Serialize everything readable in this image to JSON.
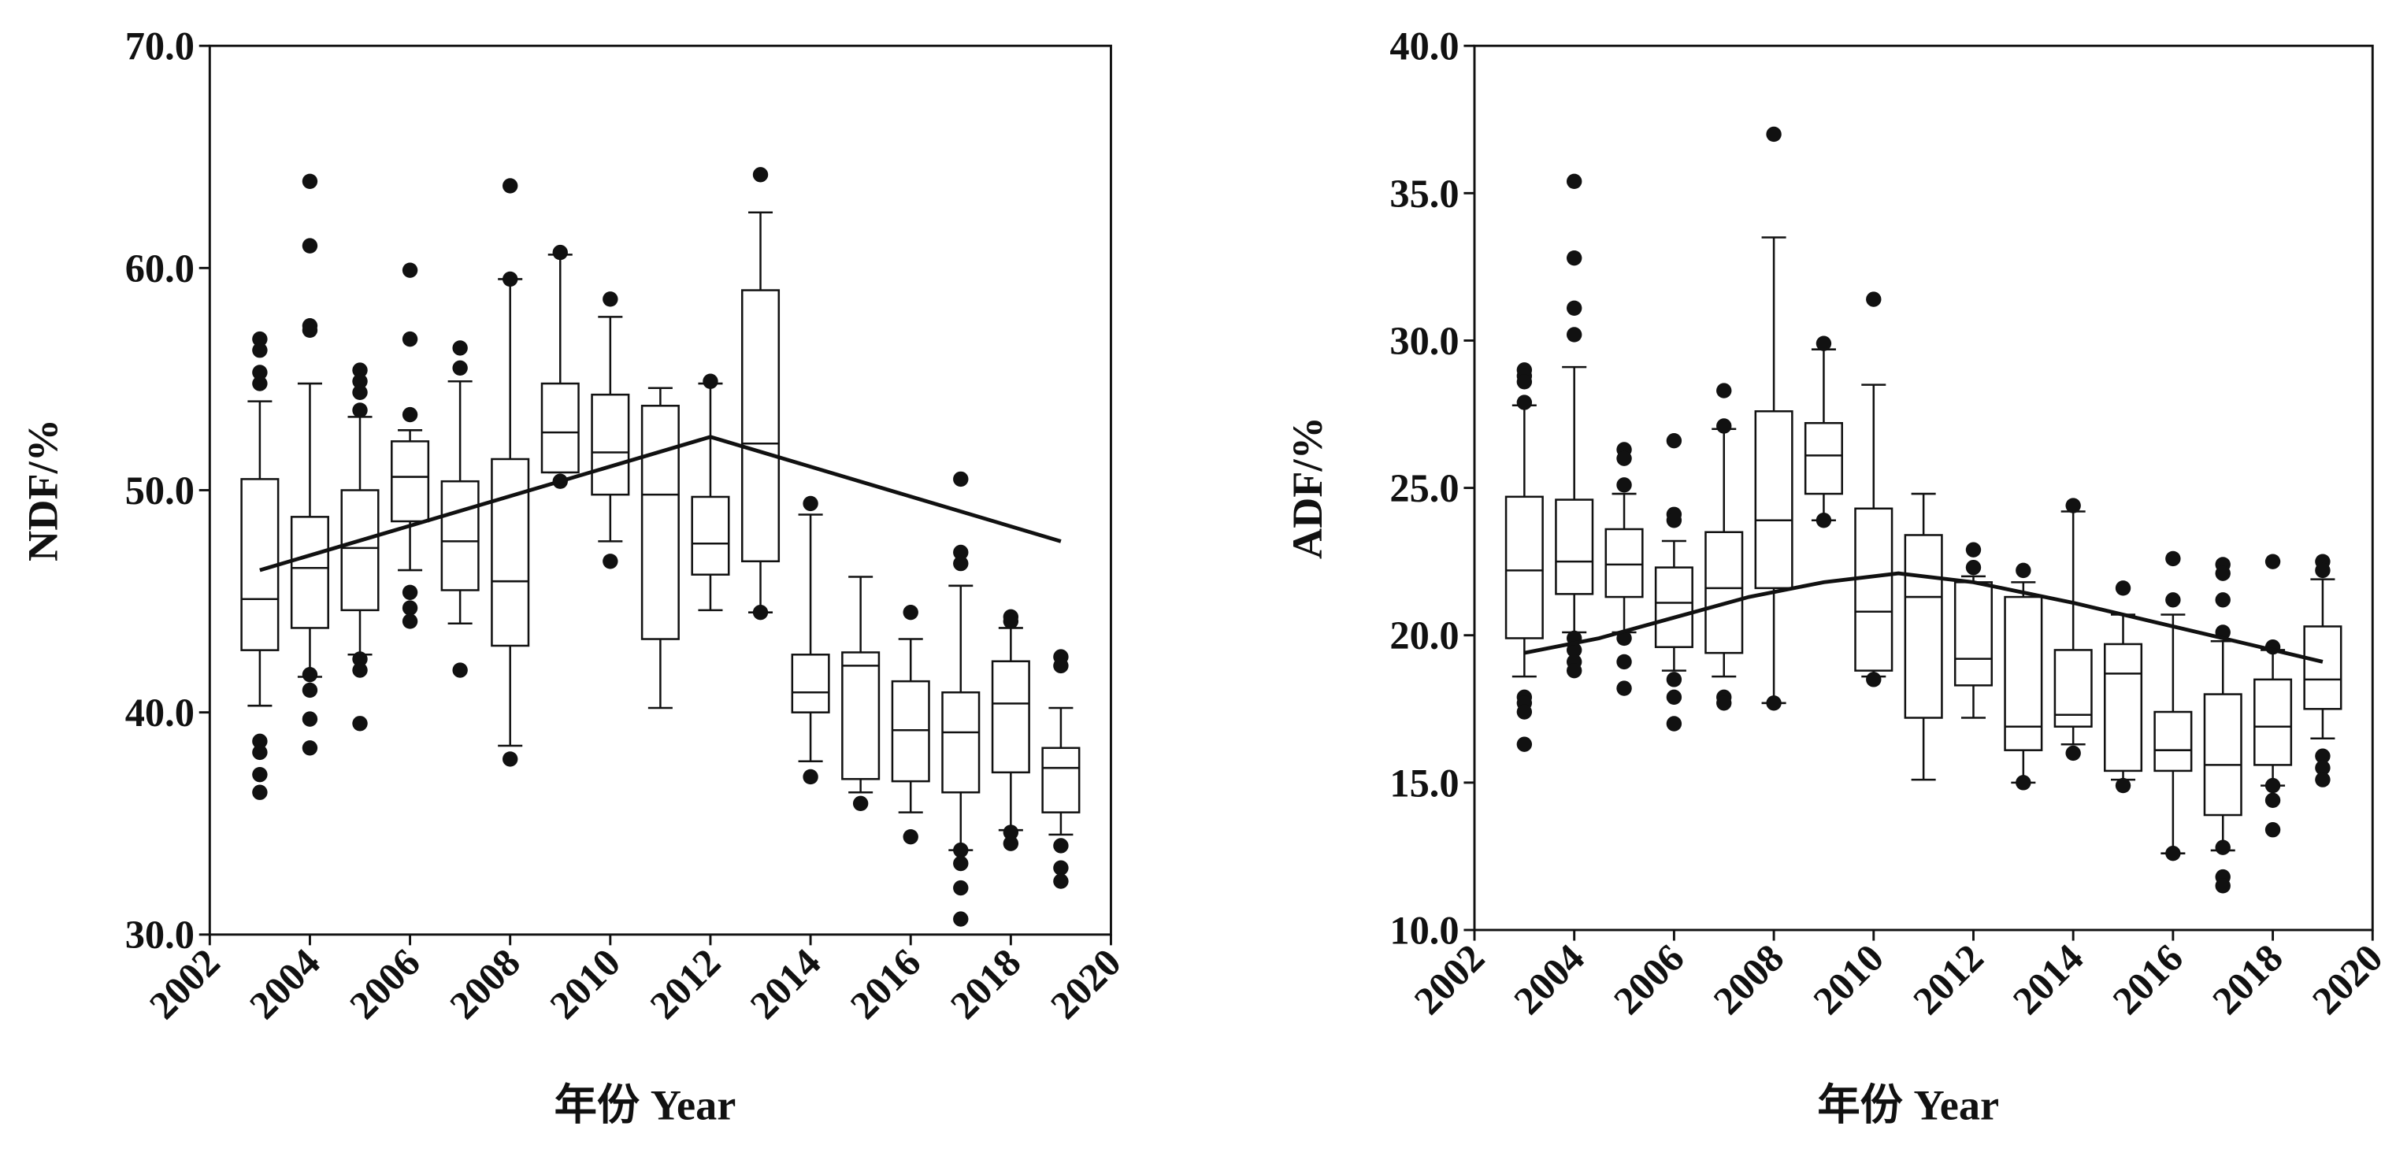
{
  "chart_data": [
    {
      "type": "box",
      "title": "",
      "xlabel": "年份 Year",
      "ylabel": "NDF/%",
      "ylim": [
        30,
        70
      ],
      "xlim": [
        2002,
        2020
      ],
      "yticks": [
        "30.0",
        "40.0",
        "50.0",
        "60.0",
        "70.0"
      ],
      "xticks": [
        "2002",
        "2004",
        "2006",
        "2008",
        "2010",
        "2012",
        "2014",
        "2016",
        "2018",
        "2020"
      ],
      "boxes": [
        {
          "year": 2003,
          "low": 40.3,
          "q1": 42.8,
          "median": 45.1,
          "q3": 50.5,
          "high": 54.0,
          "outliers": [
            56.8,
            56.3,
            55.3,
            54.8,
            38.7,
            38.2,
            37.2,
            36.4
          ]
        },
        {
          "year": 2004,
          "low": 41.6,
          "q1": 43.8,
          "median": 46.5,
          "q3": 48.8,
          "high": 54.8,
          "outliers": [
            63.9,
            61.0,
            57.4,
            57.2,
            41.7,
            41.0,
            39.7,
            38.4
          ]
        },
        {
          "year": 2005,
          "low": 42.6,
          "q1": 44.6,
          "median": 47.4,
          "q3": 50.0,
          "high": 53.3,
          "outliers": [
            55.4,
            54.9,
            54.4,
            53.6,
            42.4,
            41.9,
            39.5
          ]
        },
        {
          "year": 2006,
          "low": 46.4,
          "q1": 48.6,
          "median": 50.6,
          "q3": 52.2,
          "high": 52.7,
          "outliers": [
            59.9,
            56.8,
            53.4,
            45.4,
            44.7,
            44.1
          ]
        },
        {
          "year": 2007,
          "low": 44.0,
          "q1": 45.5,
          "median": 47.7,
          "q3": 50.4,
          "high": 54.9,
          "outliers": [
            56.4,
            55.5,
            41.9
          ]
        },
        {
          "year": 2008,
          "low": 38.5,
          "q1": 43.0,
          "median": 45.9,
          "q3": 51.4,
          "high": 59.5,
          "outliers": [
            63.7,
            59.5,
            37.9
          ]
        },
        {
          "year": 2009,
          "low": 50.8,
          "q1": 50.8,
          "median": 52.6,
          "q3": 54.8,
          "high": 60.6,
          "outliers": [
            60.7,
            50.4
          ]
        },
        {
          "year": 2010,
          "low": 47.7,
          "q1": 49.8,
          "median": 51.7,
          "q3": 54.3,
          "high": 57.8,
          "outliers": [
            58.6,
            46.8
          ]
        },
        {
          "year": 2011,
          "low": 40.2,
          "q1": 43.3,
          "median": 49.8,
          "q3": 53.8,
          "high": 54.6,
          "outliers": []
        },
        {
          "year": 2012,
          "low": 44.6,
          "q1": 46.2,
          "median": 47.6,
          "q3": 49.7,
          "high": 54.8,
          "outliers": [
            54.9
          ]
        },
        {
          "year": 2013,
          "low": 44.5,
          "q1": 46.8,
          "median": 52.1,
          "q3": 59.0,
          "high": 62.5,
          "outliers": [
            64.2,
            44.5
          ]
        },
        {
          "year": 2014,
          "low": 37.8,
          "q1": 40.0,
          "median": 40.9,
          "q3": 42.6,
          "high": 48.9,
          "outliers": [
            49.4,
            37.1
          ]
        },
        {
          "year": 2015,
          "low": 36.4,
          "q1": 37.0,
          "median": 42.1,
          "q3": 42.7,
          "high": 46.1,
          "outliers": [
            35.9
          ]
        },
        {
          "year": 2016,
          "low": 35.5,
          "q1": 36.9,
          "median": 39.2,
          "q3": 41.4,
          "high": 43.3,
          "outliers": [
            44.5,
            34.4
          ]
        },
        {
          "year": 2017,
          "low": 33.8,
          "q1": 36.4,
          "median": 39.1,
          "q3": 40.9,
          "high": 45.7,
          "outliers": [
            50.5,
            47.2,
            46.7,
            33.8,
            33.2,
            32.1,
            30.7
          ]
        },
        {
          "year": 2018,
          "low": 34.7,
          "q1": 37.3,
          "median": 40.4,
          "q3": 42.3,
          "high": 43.8,
          "outliers": [
            44.3,
            44.1,
            34.6,
            34.1
          ]
        },
        {
          "year": 2019,
          "low": 34.5,
          "q1": 35.5,
          "median": 37.5,
          "q3": 38.4,
          "high": 40.2,
          "outliers": [
            42.5,
            42.1,
            34.0,
            33.0,
            32.4
          ]
        }
      ],
      "trend": {
        "x": [
          2003,
          2012,
          2019
        ],
        "y": [
          46.4,
          52.4,
          47.7
        ]
      }
    },
    {
      "type": "box",
      "title": "",
      "xlabel": "年份 Year",
      "ylabel": "ADF/%",
      "ylim": [
        10,
        40
      ],
      "xlim": [
        2002,
        2020
      ],
      "yticks": [
        "10.0",
        "15.0",
        "20.0",
        "25.0",
        "30.0",
        "35.0",
        "40.0"
      ],
      "xticks": [
        "2002",
        "2004",
        "2006",
        "2008",
        "2010",
        "2012",
        "2014",
        "2016",
        "2018",
        "2020"
      ],
      "boxes": [
        {
          "year": 2003,
          "low": 18.6,
          "q1": 19.9,
          "median": 22.2,
          "q3": 24.7,
          "high": 27.8,
          "outliers": [
            29.0,
            28.8,
            28.6,
            27.9,
            17.9,
            17.7,
            17.4,
            16.3
          ]
        },
        {
          "year": 2004,
          "low": 20.1,
          "q1": 21.4,
          "median": 22.5,
          "q3": 24.6,
          "high": 29.1,
          "outliers": [
            35.4,
            32.8,
            31.1,
            30.2,
            19.9,
            19.5,
            19.1,
            18.8
          ]
        },
        {
          "year": 2005,
          "low": 20.1,
          "q1": 21.3,
          "median": 22.4,
          "q3": 23.6,
          "high": 24.8,
          "outliers": [
            26.3,
            26.0,
            25.1,
            19.9,
            19.1,
            18.2
          ]
        },
        {
          "year": 2006,
          "low": 18.8,
          "q1": 19.6,
          "median": 21.1,
          "q3": 22.3,
          "high": 23.2,
          "outliers": [
            26.6,
            24.1,
            23.9,
            18.5,
            17.9,
            17.0
          ]
        },
        {
          "year": 2007,
          "low": 18.6,
          "q1": 19.4,
          "median": 21.6,
          "q3": 23.5,
          "high": 27.0,
          "outliers": [
            28.3,
            27.1,
            17.9,
            17.7
          ]
        },
        {
          "year": 2008,
          "low": 17.7,
          "q1": 21.6,
          "median": 23.9,
          "q3": 27.6,
          "high": 33.5,
          "outliers": [
            37.0,
            17.7
          ]
        },
        {
          "year": 2009,
          "low": 23.9,
          "q1": 24.8,
          "median": 26.1,
          "q3": 27.2,
          "high": 29.7,
          "outliers": [
            29.9,
            23.9
          ]
        },
        {
          "year": 2010,
          "low": 18.6,
          "q1": 18.8,
          "median": 20.8,
          "q3": 24.3,
          "high": 28.5,
          "outliers": [
            31.4,
            18.5
          ]
        },
        {
          "year": 2011,
          "low": 15.1,
          "q1": 17.2,
          "median": 21.3,
          "q3": 23.4,
          "high": 24.8,
          "outliers": []
        },
        {
          "year": 2012,
          "low": 17.2,
          "q1": 18.3,
          "median": 19.2,
          "q3": 21.8,
          "high": 22.0,
          "outliers": [
            22.9,
            22.3
          ]
        },
        {
          "year": 2013,
          "low": 15.0,
          "q1": 16.1,
          "median": 16.9,
          "q3": 21.3,
          "high": 21.8,
          "outliers": [
            22.2,
            15.0
          ]
        },
        {
          "year": 2014,
          "low": 16.3,
          "q1": 16.9,
          "median": 17.3,
          "q3": 19.5,
          "high": 24.2,
          "outliers": [
            24.4,
            16.0
          ]
        },
        {
          "year": 2015,
          "low": 15.1,
          "q1": 15.4,
          "median": 18.7,
          "q3": 19.7,
          "high": 20.7,
          "outliers": [
            21.6,
            14.9
          ]
        },
        {
          "year": 2016,
          "low": 12.6,
          "q1": 15.4,
          "median": 16.1,
          "q3": 17.4,
          "high": 20.7,
          "outliers": [
            22.6,
            21.2,
            12.6
          ]
        },
        {
          "year": 2017,
          "low": 12.7,
          "q1": 13.9,
          "median": 15.6,
          "q3": 18.0,
          "high": 19.8,
          "outliers": [
            22.4,
            22.1,
            21.2,
            20.1,
            12.8,
            11.8,
            11.5
          ]
        },
        {
          "year": 2018,
          "low": 14.9,
          "q1": 15.6,
          "median": 16.9,
          "q3": 18.5,
          "high": 19.5,
          "outliers": [
            22.5,
            19.6,
            14.9,
            14.4,
            13.4
          ]
        },
        {
          "year": 2019,
          "low": 16.5,
          "q1": 17.5,
          "median": 18.5,
          "q3": 20.3,
          "high": 21.9,
          "outliers": [
            22.5,
            22.2,
            15.9,
            15.5,
            15.1
          ]
        }
      ],
      "trend": {
        "x": [
          2003,
          2004.5,
          2006,
          2007.5,
          2009,
          2010.5,
          2012,
          2014,
          2016,
          2017.5,
          2019
        ],
        "y": [
          19.4,
          19.9,
          20.6,
          21.3,
          21.8,
          22.1,
          21.8,
          21.1,
          20.3,
          19.7,
          19.1
        ]
      }
    }
  ]
}
